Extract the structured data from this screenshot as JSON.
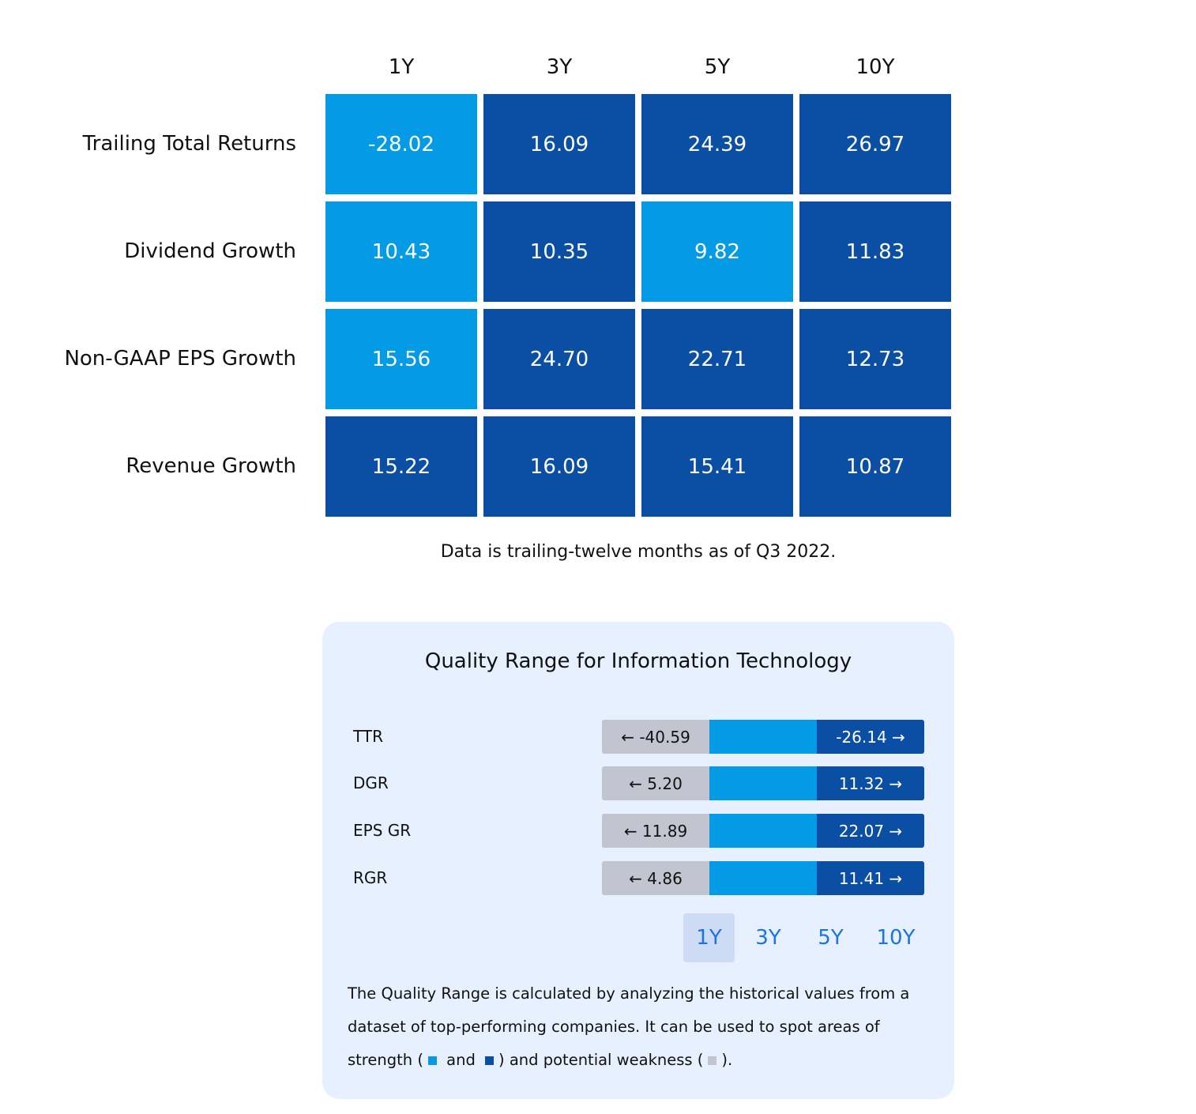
{
  "colors": {
    "strength_light": "#039be5",
    "strength_dark": "#0b4fa5",
    "weakness": "#c2c4cf",
    "panel_bg": "#e6f0fe",
    "tab_active_bg": "#cddcf4",
    "tab_text": "#1a73e8"
  },
  "chart_data": {
    "type": "heatmap",
    "columns": [
      "1Y",
      "3Y",
      "5Y",
      "10Y"
    ],
    "rows": [
      "Trailing Total Returns",
      "Dividend Growth",
      "Non-GAAP EPS Growth",
      "Revenue Growth"
    ],
    "values": [
      [
        "-28.02",
        "16.09",
        "24.39",
        "26.97"
      ],
      [
        "10.43",
        "10.35",
        "9.82",
        "11.83"
      ],
      [
        "15.56",
        "24.70",
        "22.71",
        "12.73"
      ],
      [
        "15.22",
        "16.09",
        "15.41",
        "10.87"
      ]
    ],
    "levels": [
      [
        "light",
        "dark",
        "dark",
        "dark"
      ],
      [
        "light",
        "dark",
        "light",
        "dark"
      ],
      [
        "light",
        "dark",
        "dark",
        "dark"
      ],
      [
        "dark",
        "dark",
        "dark",
        "dark"
      ]
    ],
    "caption": "Data is trailing-twelve months as of Q3 2022."
  },
  "quality": {
    "title": "Quality Range for Information Technology",
    "rows": [
      {
        "label": "TTR",
        "low": "← -40.59",
        "high": "-26.14 →"
      },
      {
        "label": "DGR",
        "low": "← 5.20",
        "high": "11.32 →"
      },
      {
        "label": "EPS GR",
        "low": "← 11.89",
        "high": "22.07 →"
      },
      {
        "label": "RGR",
        "low": "← 4.86",
        "high": "11.41 →"
      }
    ],
    "tabs": [
      "1Y",
      "3Y",
      "5Y",
      "10Y"
    ],
    "active_tab": "1Y",
    "note": {
      "part1": "The Quality Range is calculated by analyzing the historical values from a dataset of top-performing companies. It can be used to spot areas of strength (",
      "part2": " and ",
      "part3": ") and potential weakness (",
      "part4": ")."
    }
  }
}
